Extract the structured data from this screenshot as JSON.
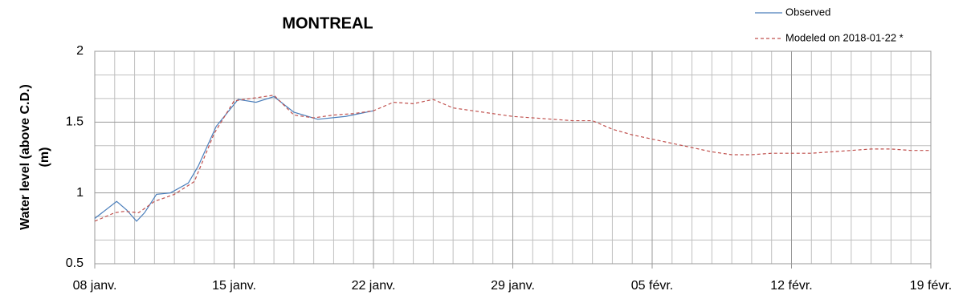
{
  "chart_data": {
    "type": "line",
    "title": "MONTREAL",
    "ylabel": [
      "Water level (above C.D.)",
      "(m)"
    ],
    "xlim": [
      0,
      42
    ],
    "xticks": [
      {
        "value": 0,
        "label": "08 janv."
      },
      {
        "value": 7,
        "label": "15 janv."
      },
      {
        "value": 14,
        "label": "22 janv."
      },
      {
        "value": 21,
        "label": "29 janv."
      },
      {
        "value": 28,
        "label": "05 févr."
      },
      {
        "value": 35,
        "label": "12 févr."
      },
      {
        "value": 42,
        "label": "19 févr."
      }
    ],
    "ylim": [
      0.5,
      2
    ],
    "yticks": [
      0.5,
      1,
      1.5,
      2
    ],
    "grid": true,
    "legend": "top-right",
    "series": [
      {
        "name": "Observed",
        "color": "#4a7ebb",
        "dash": false,
        "x": [
          0,
          1.1,
          1.6,
          2.1,
          2.5,
          3.1,
          3.8,
          4.7,
          5.2,
          6.1,
          7.2,
          8.1,
          9,
          10,
          11.2,
          12.6,
          14
        ],
        "values": [
          0.82,
          0.94,
          0.88,
          0.8,
          0.86,
          0.99,
          1.0,
          1.07,
          1.19,
          1.47,
          1.66,
          1.64,
          1.68,
          1.57,
          1.52,
          1.54,
          1.58
        ]
      },
      {
        "name": "Modeled on 2018-01-22 *",
        "color": "#c0504d",
        "dash": true,
        "x": [
          0,
          1,
          1.5,
          2.2,
          3,
          4,
          5,
          6,
          7,
          8,
          9,
          10,
          11,
          12,
          13,
          14,
          15,
          16,
          17,
          18,
          19,
          20,
          21,
          22,
          23,
          24,
          25,
          26,
          27,
          28,
          29,
          30,
          31,
          32,
          33,
          34,
          35,
          36,
          37,
          38,
          39,
          40,
          41,
          42
        ],
        "values": [
          0.8,
          0.86,
          0.87,
          0.86,
          0.94,
          0.99,
          1.08,
          1.42,
          1.65,
          1.67,
          1.69,
          1.55,
          1.53,
          1.55,
          1.56,
          1.58,
          1.64,
          1.63,
          1.66,
          1.6,
          1.58,
          1.56,
          1.54,
          1.53,
          1.52,
          1.51,
          1.51,
          1.45,
          1.41,
          1.38,
          1.35,
          1.32,
          1.29,
          1.27,
          1.27,
          1.28,
          1.28,
          1.28,
          1.29,
          1.3,
          1.31,
          1.31,
          1.3,
          1.3
        ]
      }
    ]
  }
}
